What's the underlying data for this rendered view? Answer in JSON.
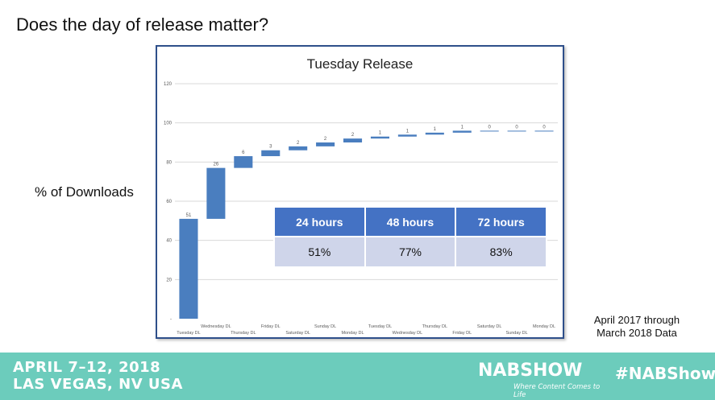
{
  "slide": {
    "title": "Does the day of release matter?",
    "side_label": "% of Downloads",
    "source_line1": "April 2017 through",
    "source_line2": "March 2018 Data"
  },
  "footer": {
    "dates_line1": "APRIL 7–12, 2018",
    "dates_line2": "LAS VEGAS, NV USA",
    "brand": "NABSHOW",
    "tagline": "Where Content Comes to Life",
    "hashtag": "#NABShow",
    "background": "#6cccbc"
  },
  "summary_table": {
    "headers": [
      "24 hours",
      "48 hours",
      "72 hours"
    ],
    "values": [
      "51%",
      "77%",
      "83%"
    ],
    "header_color": "#4472c4",
    "cell_color": "#cfd5ea"
  },
  "chart_data": {
    "type": "bar",
    "subtype": "waterfall",
    "title": "Tuesday Release",
    "xlabel": "",
    "ylabel": "",
    "categories": [
      "Tuesday DL",
      "Wednesday DL",
      "Thursday DL",
      "Friday DL",
      "Saturday DL",
      "Sunday DL",
      "Monday DL",
      "Tuesday DL",
      "Wednesday DL",
      "Thursday DL",
      "Friday DL",
      "Saturday DL",
      "Sunday DL",
      "Monday DL"
    ],
    "values": [
      51,
      26,
      6,
      3,
      2,
      2,
      2,
      1,
      1,
      1,
      1,
      0,
      0,
      0
    ],
    "data_labels": [
      "51",
      "26",
      "6",
      "3",
      "2",
      "2",
      "2",
      "1",
      "1",
      "1",
      "1",
      "0",
      "0",
      "0"
    ],
    "bar_color": "#4a7ebf",
    "ylim": [
      0,
      120
    ],
    "yticks": [
      "-",
      "20",
      "40",
      "60",
      "80",
      "100",
      "120"
    ],
    "grid": true
  }
}
